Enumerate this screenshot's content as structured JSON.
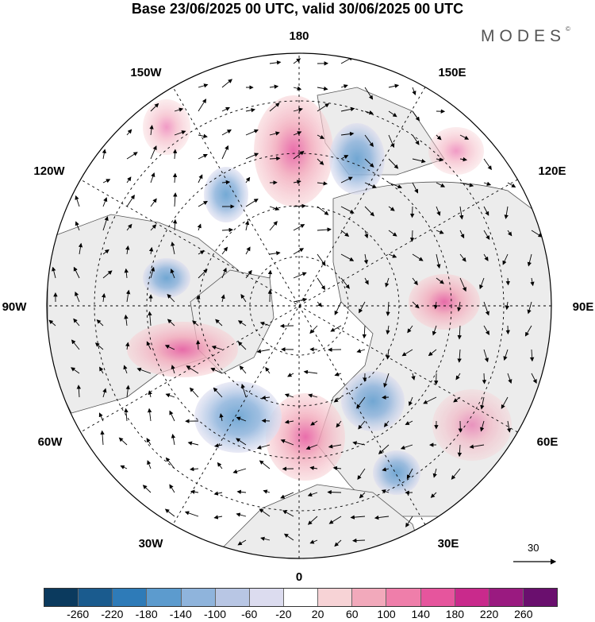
{
  "title": "Base 23/06/2025 00 UTC, valid 30/06/2025 00 UTC",
  "logo": {
    "text": "MODES",
    "mark": "©"
  },
  "longitude_labels": [
    {
      "key": "lon-0",
      "text": "0"
    },
    {
      "key": "lon-30e",
      "text": "30E"
    },
    {
      "key": "lon-60e",
      "text": "60E"
    },
    {
      "key": "lon-90e",
      "text": "90E"
    },
    {
      "key": "lon-120e",
      "text": "120E"
    },
    {
      "key": "lon-150e",
      "text": "150E"
    },
    {
      "key": "lon-180",
      "text": "180"
    },
    {
      "key": "lon-150w",
      "text": "150W"
    },
    {
      "key": "lon-120w",
      "text": "120W"
    },
    {
      "key": "lon-90w",
      "text": "90W"
    },
    {
      "key": "lon-60w",
      "text": "60W"
    },
    {
      "key": "lon-30w",
      "text": "30W"
    }
  ],
  "reference_vector": {
    "value": "30"
  },
  "colorbar": {
    "colors": [
      "#0b3a5e",
      "#1a5b8e",
      "#2e7bb8",
      "#5c9bce",
      "#8fb4dc",
      "#b8c6e4",
      "#dcdcef",
      "#ffffff",
      "#f7d3d6",
      "#f2a9bb",
      "#ef7eaa",
      "#e6559d",
      "#c92a8c",
      "#9a1a80",
      "#6a0f6e"
    ],
    "ticks": [
      "-260",
      "-220",
      "-180",
      "-140",
      "-100",
      "-60",
      "-20",
      "20",
      "60",
      "100",
      "140",
      "180",
      "220",
      "260"
    ]
  },
  "anomaly_features": [
    {
      "polarity": "positive",
      "strength": 0.9
    },
    {
      "polarity": "positive",
      "strength": 0.8
    },
    {
      "polarity": "negative",
      "strength": 0.7
    },
    {
      "polarity": "negative",
      "strength": 0.7
    },
    {
      "polarity": "negative",
      "strength": 0.6
    },
    {
      "polarity": "positive",
      "strength": 0.5
    },
    {
      "polarity": "positive",
      "strength": 0.5
    },
    {
      "polarity": "negative",
      "strength": 0.5
    }
  ]
}
